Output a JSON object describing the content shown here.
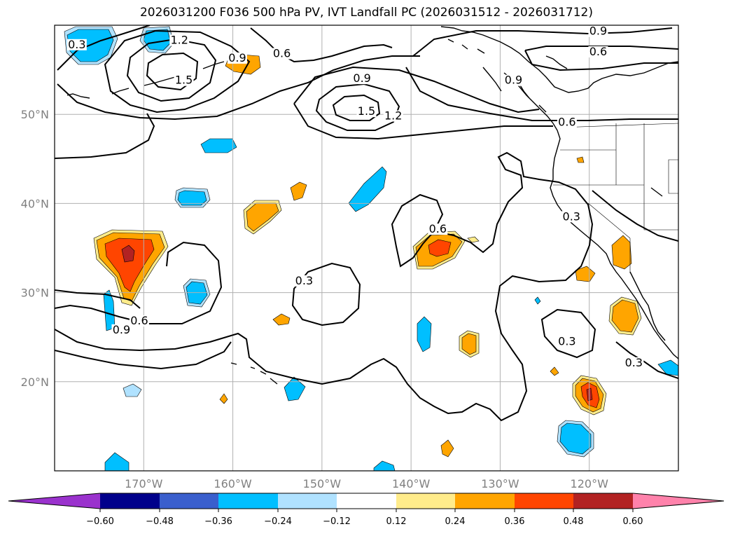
{
  "title": "2026031200 F036 500 hPa PV, IVT Landfall PC (2026031512 - 2026031712)",
  "map": {
    "lon_ticks": [
      "170°W",
      "160°W",
      "150°W",
      "140°W",
      "130°W",
      "120°W"
    ],
    "lat_ticks": [
      "50°N",
      "40°N",
      "30°N",
      "20°N"
    ],
    "lon_range": [
      -180,
      -110
    ],
    "lat_range": [
      10,
      60
    ],
    "grid": true,
    "contour_color": "#000000",
    "contour_labels": [
      {
        "text": "0.3",
        "lon": -177.5,
        "lat": 57.5
      },
      {
        "text": "1.2",
        "lon": -166.0,
        "lat": 58.0
      },
      {
        "text": "1.5",
        "lon": -165.5,
        "lat": 53.5
      },
      {
        "text": "0.9",
        "lon": -159.5,
        "lat": 56.0
      },
      {
        "text": "0.6",
        "lon": -154.5,
        "lat": 56.5
      },
      {
        "text": "0.9",
        "lon": -145.5,
        "lat": 53.7
      },
      {
        "text": "1.5",
        "lon": -145.0,
        "lat": 50.0
      },
      {
        "text": "1.2",
        "lon": -142.0,
        "lat": 49.5
      },
      {
        "text": "0.9",
        "lon": -119.0,
        "lat": 59.0
      },
      {
        "text": "0.6",
        "lon": -119.0,
        "lat": 56.7
      },
      {
        "text": "0.9",
        "lon": -128.5,
        "lat": 53.5
      },
      {
        "text": "0.6",
        "lon": -122.5,
        "lat": 48.8
      },
      {
        "text": "0.3",
        "lon": -122.0,
        "lat": 38.2
      },
      {
        "text": "0.6",
        "lon": -137.0,
        "lat": 36.8
      },
      {
        "text": "0.3",
        "lon": -152.0,
        "lat": 31.0
      },
      {
        "text": "0.6",
        "lon": -170.5,
        "lat": 26.5
      },
      {
        "text": "0.9",
        "lon": -172.5,
        "lat": 25.5
      },
      {
        "text": "0.3",
        "lon": -122.5,
        "lat": 24.2
      },
      {
        "text": "0.3",
        "lon": -115.0,
        "lat": 21.8
      }
    ]
  },
  "colorbar": {
    "ticks": [
      "−0.60",
      "−0.48",
      "−0.36",
      "−0.24",
      "−0.12",
      "0.12",
      "0.24",
      "0.36",
      "0.48",
      "0.60"
    ],
    "colors": [
      "#9a32cd",
      "#00008b",
      "#3a5fcd",
      "#00bfff",
      "#b0e2ff",
      "#ffffff",
      "#ffec8b",
      "#ffa500",
      "#ff4500",
      "#b22222",
      "#ff82ab"
    ]
  },
  "palette": {
    "neg_strong": "#00bfff",
    "neg_weak": "#b0e2ff",
    "pos_weak": "#ffec8b",
    "pos_mid": "#ffa500",
    "pos_strong": "#ff4500",
    "pos_max": "#b22222"
  }
}
